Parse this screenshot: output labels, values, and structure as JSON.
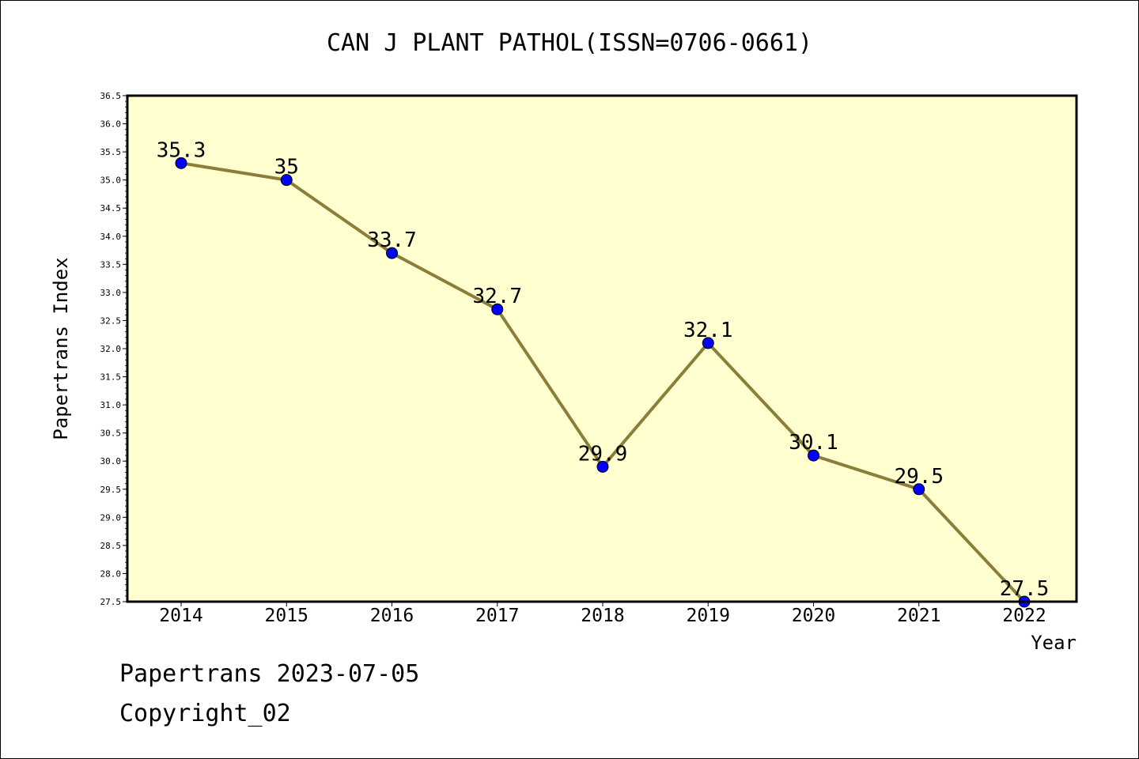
{
  "chart_data": {
    "type": "line",
    "title": "CAN J PLANT PATHOL(ISSN=0706-0661)",
    "xlabel": "Year",
    "ylabel": "Papertrans Index",
    "categories": [
      "2014",
      "2015",
      "2016",
      "2017",
      "2018",
      "2019",
      "2020",
      "2021",
      "2022"
    ],
    "values": [
      35.3,
      35.0,
      33.7,
      32.7,
      29.9,
      32.1,
      30.1,
      29.5,
      27.5
    ],
    "value_labels": [
      "35.3",
      "35",
      "33.7",
      "32.7",
      "29.9",
      "32.1",
      "30.1",
      "29.5",
      "27.5"
    ],
    "ylim": [
      27.5,
      36.5
    ],
    "y_ticks": [
      "27.5",
      "28.0",
      "28.5",
      "29.0",
      "29.5",
      "30.0",
      "30.5",
      "31.0",
      "31.5",
      "32.0",
      "32.5",
      "33.0",
      "33.5",
      "34.0",
      "34.5",
      "35.0",
      "35.5",
      "36.0",
      "36.5"
    ],
    "grid": false,
    "colors": {
      "plot_background": "#ffffd0",
      "line": "#8b7d3a",
      "marker": "#0000ff"
    }
  },
  "footer": {
    "source": "Papertrans 2023-07-05",
    "copyright": "Copyright_02"
  }
}
